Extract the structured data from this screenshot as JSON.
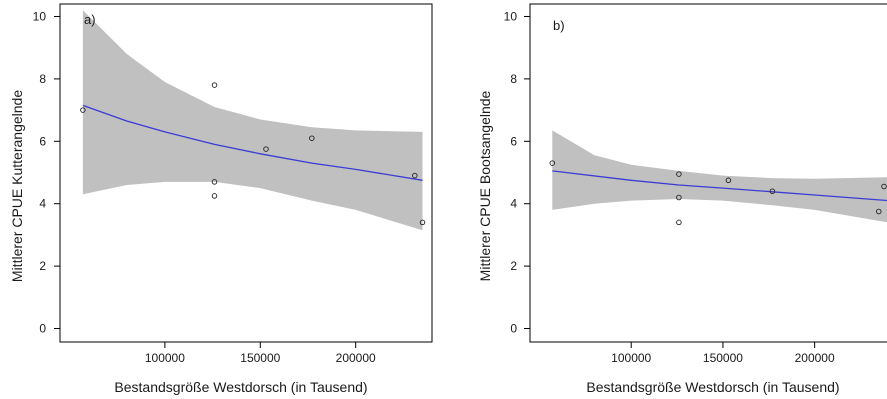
{
  "chart_data": [
    {
      "type": "scatter",
      "panel_label": "a)",
      "xlabel": "Bestandsgröße Westdorsch (in Tausend)",
      "ylabel": "Mittlerer CPUE Kutterangelnde",
      "xlim": [
        50000,
        240000
      ],
      "ylim": [
        -0.4,
        10.4
      ],
      "xticks": [
        100000,
        150000,
        200000
      ],
      "yticks": [
        0,
        2,
        4,
        6,
        8,
        10
      ],
      "grid": false,
      "points": [
        {
          "x": 57000,
          "y": 7.0
        },
        {
          "x": 126000,
          "y": 7.8
        },
        {
          "x": 126000,
          "y": 4.7
        },
        {
          "x": 126000,
          "y": 4.25
        },
        {
          "x": 153000,
          "y": 5.75
        },
        {
          "x": 177000,
          "y": 6.1
        },
        {
          "x": 231000,
          "y": 4.9
        },
        {
          "x": 235000,
          "y": 3.4
        }
      ],
      "fit_line": {
        "color": "#3b3bd6",
        "x": [
          57000,
          80000,
          100000,
          126000,
          150000,
          177000,
          200000,
          235000
        ],
        "y": [
          7.15,
          6.65,
          6.3,
          5.9,
          5.6,
          5.3,
          5.1,
          4.75
        ]
      },
      "confidence_band": {
        "color": "#c0c0c0",
        "x": [
          57000,
          80000,
          100000,
          126000,
          150000,
          177000,
          200000,
          235000
        ],
        "upper": [
          10.2,
          8.8,
          7.9,
          7.1,
          6.7,
          6.45,
          6.35,
          6.3
        ],
        "lower": [
          4.3,
          4.6,
          4.7,
          4.7,
          4.5,
          4.1,
          3.8,
          3.15
        ]
      }
    },
    {
      "type": "scatter",
      "panel_label": "b)",
      "xlabel": "Bestandsgröße Westdorsch (in Tausend)",
      "ylabel": "Mittlerer CPUE Bootsangelnde",
      "xlim": [
        50000,
        240000
      ],
      "ylim": [
        -0.4,
        10.4
      ],
      "xticks": [
        100000,
        150000,
        200000
      ],
      "yticks": [
        0,
        2,
        4,
        6,
        8,
        10
      ],
      "grid": false,
      "points": [
        {
          "x": 57000,
          "y": 5.3
        },
        {
          "x": 126000,
          "y": 4.95
        },
        {
          "x": 126000,
          "y": 4.2
        },
        {
          "x": 126000,
          "y": 3.4
        },
        {
          "x": 153000,
          "y": 4.75
        },
        {
          "x": 177000,
          "y": 4.4
        },
        {
          "x": 235000,
          "y": 3.75
        },
        {
          "x": 239000,
          "y": 4.55
        }
      ],
      "fit_line": {
        "color": "#3b3bd6",
        "x": [
          57000,
          100000,
          126000,
          150000,
          177000,
          200000,
          240000
        ],
        "y": [
          5.05,
          4.75,
          4.6,
          4.5,
          4.38,
          4.28,
          4.1
        ]
      },
      "confidence_band": {
        "color": "#c0c0c0",
        "x": [
          57000,
          80000,
          100000,
          126000,
          150000,
          177000,
          200000,
          240000
        ],
        "upper": [
          6.35,
          5.55,
          5.25,
          5.05,
          4.9,
          4.82,
          4.8,
          4.85
        ],
        "lower": [
          3.8,
          4.0,
          4.1,
          4.15,
          4.1,
          3.95,
          3.8,
          3.4
        ]
      }
    }
  ]
}
